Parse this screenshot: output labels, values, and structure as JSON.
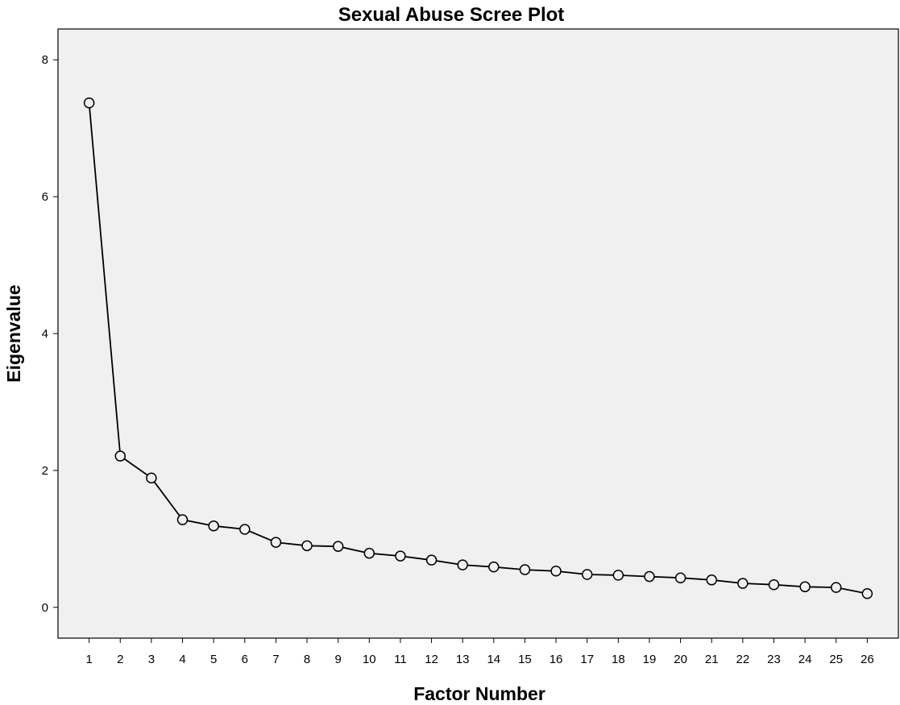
{
  "chart_data": {
    "type": "line",
    "title": "Sexual Abuse Scree Plot",
    "xlabel": "Factor Number",
    "ylabel": "Eigenvalue",
    "x": [
      1,
      2,
      3,
      4,
      5,
      6,
      7,
      8,
      9,
      10,
      11,
      12,
      13,
      14,
      15,
      16,
      17,
      18,
      19,
      20,
      21,
      22,
      23,
      24,
      25,
      26
    ],
    "series": [
      {
        "values": [
          7.37,
          2.21,
          1.89,
          1.28,
          1.19,
          1.14,
          0.95,
          0.9,
          0.89,
          0.79,
          0.75,
          0.69,
          0.62,
          0.59,
          0.55,
          0.53,
          0.48,
          0.47,
          0.45,
          0.43,
          0.4,
          0.35,
          0.33,
          0.3,
          0.29,
          0.2
        ]
      }
    ],
    "x_ticks": [
      "1",
      "2",
      "3",
      "4",
      "5",
      "6",
      "7",
      "8",
      "9",
      "10",
      "11",
      "12",
      "13",
      "14",
      "15",
      "16",
      "17",
      "18",
      "19",
      "20",
      "21",
      "22",
      "23",
      "24",
      "25",
      "26"
    ],
    "y_ticks": [
      "0",
      "2",
      "4",
      "6",
      "8"
    ],
    "ylim": [
      -0.45,
      8.45
    ],
    "xlim": [
      0,
      27
    ],
    "grid": false,
    "legend": "none",
    "colors": {
      "plot_background": "#f0f0f0",
      "line": "#000000",
      "marker_fill": "#f0f0f0",
      "frame": "#000000"
    }
  }
}
